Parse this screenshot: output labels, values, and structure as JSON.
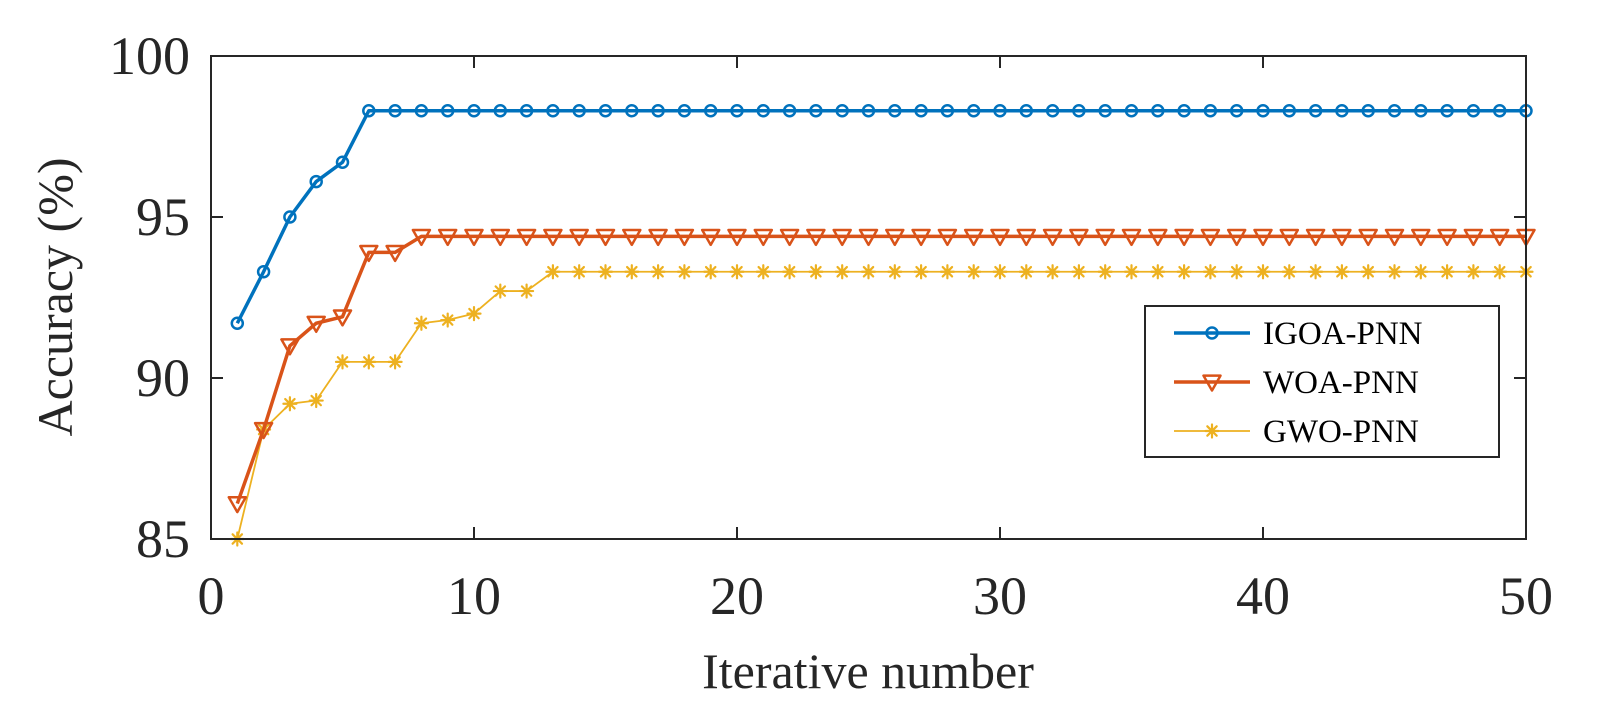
{
  "chart_data": {
    "type": "line",
    "title": "",
    "xlabel": "Iterative number",
    "ylabel": "Accuracy (%)",
    "xlim": [
      0,
      50
    ],
    "ylim": [
      85,
      100
    ],
    "xticks": [
      0,
      10,
      20,
      30,
      40,
      50
    ],
    "yticks": [
      85,
      90,
      95,
      100
    ],
    "xtick_labels": [
      "0",
      "10",
      "20",
      "30",
      "40",
      "50"
    ],
    "ytick_labels": [
      "85",
      "90",
      "95",
      "100"
    ],
    "grid": false,
    "legend_position": "right",
    "x": [
      1,
      2,
      3,
      4,
      5,
      6,
      7,
      8,
      9,
      10,
      11,
      12,
      13,
      14,
      15,
      16,
      17,
      18,
      19,
      20,
      21,
      22,
      23,
      24,
      25,
      26,
      27,
      28,
      29,
      30,
      31,
      32,
      33,
      34,
      35,
      36,
      37,
      38,
      39,
      40,
      41,
      42,
      43,
      44,
      45,
      46,
      47,
      48,
      49,
      50
    ],
    "series": [
      {
        "name": "IGOA-PNN",
        "color": "#0072BD",
        "marker": "circle",
        "values": [
          91.7,
          93.3,
          95.0,
          96.1,
          96.7,
          98.3,
          98.3,
          98.3,
          98.3,
          98.3,
          98.3,
          98.3,
          98.3,
          98.3,
          98.3,
          98.3,
          98.3,
          98.3,
          98.3,
          98.3,
          98.3,
          98.3,
          98.3,
          98.3,
          98.3,
          98.3,
          98.3,
          98.3,
          98.3,
          98.3,
          98.3,
          98.3,
          98.3,
          98.3,
          98.3,
          98.3,
          98.3,
          98.3,
          98.3,
          98.3,
          98.3,
          98.3,
          98.3,
          98.3,
          98.3,
          98.3,
          98.3,
          98.3,
          98.3,
          98.3
        ]
      },
      {
        "name": "WOA-PNN",
        "color": "#D95319",
        "marker": "triangle-down",
        "values": [
          86.1,
          88.4,
          91.0,
          91.7,
          91.9,
          93.9,
          93.9,
          94.4,
          94.4,
          94.4,
          94.4,
          94.4,
          94.4,
          94.4,
          94.4,
          94.4,
          94.4,
          94.4,
          94.4,
          94.4,
          94.4,
          94.4,
          94.4,
          94.4,
          94.4,
          94.4,
          94.4,
          94.4,
          94.4,
          94.4,
          94.4,
          94.4,
          94.4,
          94.4,
          94.4,
          94.4,
          94.4,
          94.4,
          94.4,
          94.4,
          94.4,
          94.4,
          94.4,
          94.4,
          94.4,
          94.4,
          94.4,
          94.4,
          94.4,
          94.4
        ]
      },
      {
        "name": "GWO-PNN",
        "color": "#EDB120",
        "marker": "asterisk",
        "values": [
          85.0,
          88.4,
          89.2,
          89.3,
          90.5,
          90.5,
          90.5,
          91.7,
          91.8,
          92.0,
          92.7,
          92.7,
          93.3,
          93.3,
          93.3,
          93.3,
          93.3,
          93.3,
          93.3,
          93.3,
          93.3,
          93.3,
          93.3,
          93.3,
          93.3,
          93.3,
          93.3,
          93.3,
          93.3,
          93.3,
          93.3,
          93.3,
          93.3,
          93.3,
          93.3,
          93.3,
          93.3,
          93.3,
          93.3,
          93.3,
          93.3,
          93.3,
          93.3,
          93.3,
          93.3,
          93.3,
          93.3,
          93.3,
          93.3,
          93.3
        ]
      }
    ]
  }
}
